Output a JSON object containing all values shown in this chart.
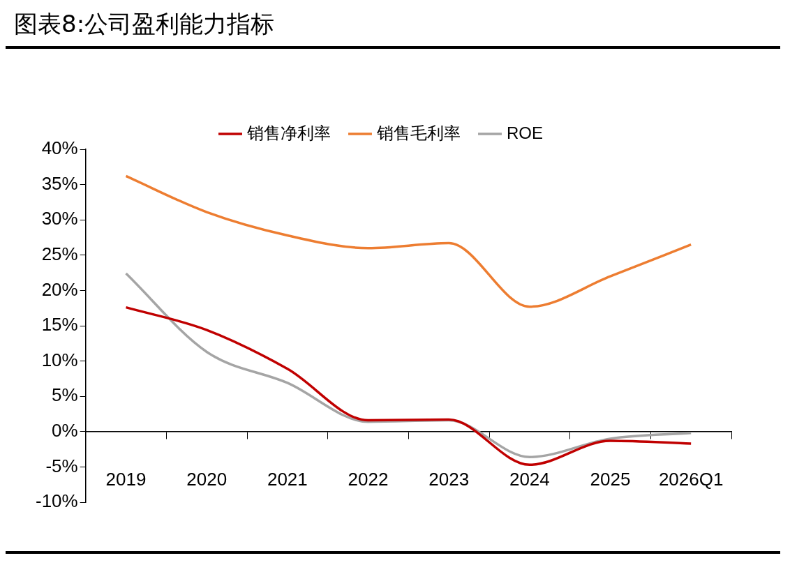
{
  "chart_data": {
    "type": "line",
    "title": "图表8:公司盈利能力指标",
    "categories": [
      "2019",
      "2020",
      "2021",
      "2022",
      "2023",
      "2024",
      "2025",
      "2026Q1"
    ],
    "series": [
      {
        "name": "销售净利率",
        "color": "#c00000",
        "values": [
          17.6,
          14.4,
          8.9,
          1.6,
          1.7,
          -4.7,
          -1.3,
          -1.7
        ]
      },
      {
        "name": "销售毛利率",
        "color": "#ed7d31",
        "values": [
          36.2,
          31.1,
          27.8,
          26.0,
          26.7,
          17.7,
          22.0,
          26.5
        ]
      },
      {
        "name": "ROE",
        "color": "#a5a5a5",
        "values": [
          22.4,
          11.3,
          6.9,
          1.4,
          1.6,
          -3.6,
          -1.0,
          -0.2
        ]
      }
    ],
    "ylim": [
      -10,
      40
    ],
    "yticks": [
      {
        "value": -10,
        "label": "-10%"
      },
      {
        "value": -5,
        "label": "-5%"
      },
      {
        "value": 0,
        "label": "0%"
      },
      {
        "value": 5,
        "label": "5%"
      },
      {
        "value": 10,
        "label": "10%"
      },
      {
        "value": 15,
        "label": "15%"
      },
      {
        "value": 20,
        "label": "20%"
      },
      {
        "value": 25,
        "label": "25%"
      },
      {
        "value": 30,
        "label": "30%"
      },
      {
        "value": 35,
        "label": "35%"
      },
      {
        "value": 40,
        "label": "40%"
      }
    ],
    "grid": false,
    "legend": "top",
    "marker": "none",
    "line_style": "solid"
  }
}
